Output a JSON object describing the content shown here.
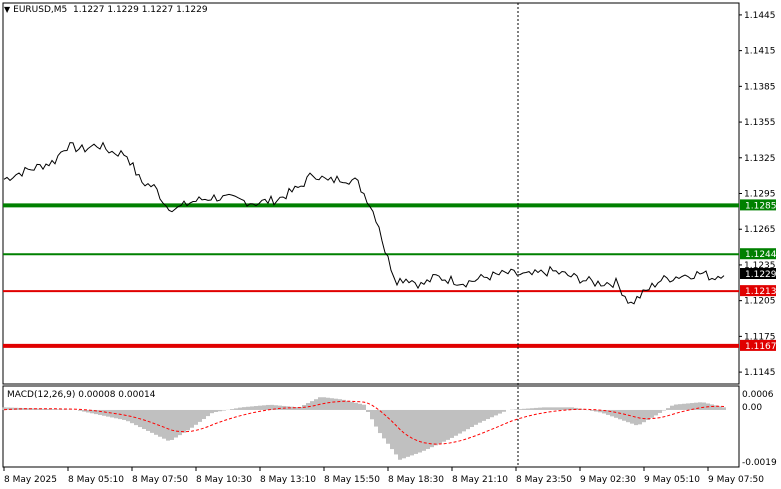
{
  "symbol_header": {
    "symbol": "EURUSD,M5",
    "ohlc": "1.1227 1.1229 1.1227 1.1229"
  },
  "price_axis": {
    "labels": [
      "1.1445",
      "1.1415",
      "1.1385",
      "1.1355",
      "1.1325",
      "1.1295",
      "1.1265",
      "1.1235",
      "1.1205",
      "1.1175",
      "1.1145"
    ],
    "range": [
      1.1135,
      1.1455
    ]
  },
  "time_axis": {
    "labels": [
      "8 May 2025",
      "8 May 05:10",
      "8 May 07:50",
      "8 May 10:30",
      "8 May 13:10",
      "8 May 15:50",
      "8 May 18:30",
      "8 May 21:10",
      "8 May 23:50",
      "9 May 02:30",
      "9 May 05:10",
      "9 May 07:50"
    ]
  },
  "levels": [
    {
      "price": 1.1285,
      "label": "1.1285",
      "color": "#008000",
      "style": "thick"
    },
    {
      "price": 1.1244,
      "label": "1.1244",
      "color": "#008000",
      "style": "thin"
    },
    {
      "price": 1.1213,
      "label": "1.1213",
      "color": "#e00000",
      "style": "thin"
    },
    {
      "price": 1.1167,
      "label": "1.1167",
      "color": "#e00000",
      "style": "thick"
    }
  ],
  "current_price": {
    "label": "1.1229",
    "value": 1.1229
  },
  "macd": {
    "title": "MACD(12,26,9) 0.00008 0.00014",
    "axis_labels": [
      "0.0006",
      "0.00",
      "-0.0019"
    ],
    "range": [
      -0.0021,
      0.0008
    ]
  },
  "colors": {
    "price_line": "#000000",
    "histogram": "#c0c0c0",
    "signal": "#ff0000",
    "crosshair": "#000000",
    "label_dark": "#000000"
  },
  "chart_data": {
    "type": "line",
    "x": [
      "8 May 2025",
      "8 May 05:10",
      "8 May 07:50",
      "8 May 10:30",
      "8 May 13:10",
      "8 May 15:50",
      "8 May 18:30",
      "8 May 21:10",
      "8 May 23:50",
      "9 May 02:30",
      "9 May 05:10",
      "9 May 07:50"
    ],
    "series": [
      {
        "values": [
          1.131,
          1.133,
          1.13,
          1.129,
          1.1295,
          1.1305,
          1.122,
          1.1225,
          1.123,
          1.1222,
          1.1228,
          1.1229
        ]
      }
    ]
  }
}
